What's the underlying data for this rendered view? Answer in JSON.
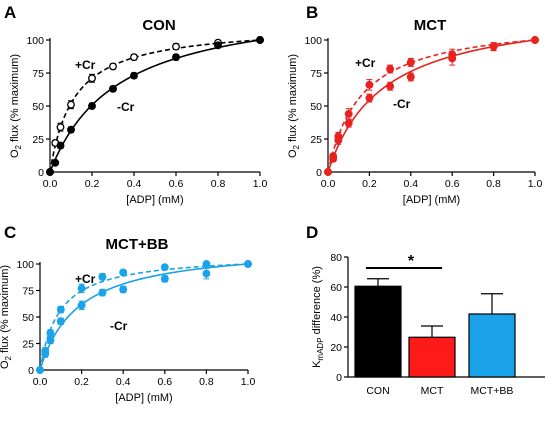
{
  "chart_data": [
    {
      "panel": "A",
      "type": "line",
      "title": "CON",
      "color": "#000000",
      "xlabel": "[ADP] (mM)",
      "ylabel": "O2 flux (% maximum)",
      "xlim": [
        0,
        1.0
      ],
      "ylim": [
        0,
        100
      ],
      "xticks": [
        "0.0",
        "0.2",
        "0.4",
        "0.6",
        "0.8",
        "1.0"
      ],
      "yticks": [
        "0",
        "25",
        "50",
        "75",
        "100"
      ],
      "series": [
        {
          "name": "+Cr",
          "style": "dashed",
          "x": [
            0,
            0.025,
            0.05,
            0.1,
            0.2,
            0.3,
            0.4,
            0.6,
            0.8,
            1.0
          ],
          "y": [
            0,
            22,
            34,
            51,
            71,
            80,
            87,
            95,
            98,
            100
          ],
          "err": [
            0,
            2,
            3,
            3,
            3,
            2,
            2,
            2,
            1,
            0
          ]
        },
        {
          "name": "-Cr",
          "style": "solid",
          "x": [
            0,
            0.025,
            0.05,
            0.1,
            0.2,
            0.3,
            0.4,
            0.6,
            0.8,
            1.0
          ],
          "y": [
            0,
            7,
            20,
            32,
            50,
            63,
            73,
            87,
            96,
            100
          ],
          "err": [
            0,
            1,
            2,
            2,
            2,
            2,
            2,
            2,
            1,
            0
          ]
        }
      ]
    },
    {
      "panel": "B",
      "type": "line",
      "title": "MCT",
      "color": "#e8221e",
      "xlabel": "[ADP] (mM)",
      "ylabel": "O2 flux (% maximum)",
      "xlim": [
        0,
        1.0
      ],
      "ylim": [
        0,
        100
      ],
      "xticks": [
        "0.0",
        "0.2",
        "0.4",
        "0.6",
        "0.8",
        "1.0"
      ],
      "yticks": [
        "0",
        "25",
        "50",
        "75",
        "100"
      ],
      "series": [
        {
          "name": "+Cr",
          "style": "dashed",
          "x": [
            0,
            0.025,
            0.05,
            0.1,
            0.2,
            0.3,
            0.4,
            0.6,
            0.8,
            1.0
          ],
          "y": [
            0,
            12,
            27,
            44,
            66,
            78,
            83,
            89,
            95,
            100
          ],
          "err": [
            0,
            2,
            3,
            4,
            4,
            3,
            3,
            4,
            3,
            0
          ]
        },
        {
          "name": "-Cr",
          "style": "solid",
          "x": [
            0,
            0.025,
            0.05,
            0.1,
            0.2,
            0.3,
            0.4,
            0.6,
            0.8,
            1.0
          ],
          "y": [
            0,
            10,
            24,
            37,
            56,
            65,
            72,
            86,
            95,
            100
          ],
          "err": [
            0,
            2,
            3,
            3,
            3,
            3,
            3,
            5,
            3,
            0
          ]
        }
      ]
    },
    {
      "panel": "C",
      "type": "line",
      "title": "MCT+BB",
      "color": "#1aa3e8",
      "xlabel": "[ADP] (mM)",
      "ylabel": "O2 flux (% maximum)",
      "xlim": [
        0,
        1.0
      ],
      "ylim": [
        0,
        100
      ],
      "xticks": [
        "0.0",
        "0.2",
        "0.4",
        "0.6",
        "0.8",
        "1.0"
      ],
      "yticks": [
        "0",
        "25",
        "50",
        "75",
        "100"
      ],
      "series": [
        {
          "name": "+Cr",
          "style": "dashed",
          "x": [
            0,
            0.025,
            0.05,
            0.1,
            0.2,
            0.3,
            0.4,
            0.6,
            0.8,
            1.0
          ],
          "y": [
            0,
            18,
            35,
            57,
            77,
            88,
            92,
            97,
            100,
            100
          ],
          "err": [
            0,
            3,
            3,
            3,
            4,
            3,
            2,
            2,
            1,
            0
          ]
        },
        {
          "name": "-Cr",
          "style": "solid",
          "x": [
            0,
            0.025,
            0.05,
            0.1,
            0.2,
            0.3,
            0.4,
            0.6,
            0.8,
            1.0
          ],
          "y": [
            0,
            15,
            28,
            46,
            61,
            73,
            76,
            86,
            91,
            100
          ],
          "err": [
            0,
            3,
            3,
            3,
            4,
            3,
            3,
            3,
            5,
            0
          ]
        }
      ]
    },
    {
      "panel": "D",
      "type": "bar",
      "title": "",
      "categories": [
        "CON",
        "MCT",
        "MCT+BB"
      ],
      "values": [
        60.5,
        26.5,
        42
      ],
      "errors": [
        5,
        7.5,
        13.5
      ],
      "colors": [
        "#000000",
        "#ff1a1a",
        "#1aa3e8"
      ],
      "xlabel": "",
      "ylabel_main": "K",
      "ylabel_sub": "mADP",
      "ylabel_rest": " difference (%)",
      "ylim": [
        0,
        80
      ],
      "yticks": [
        "0",
        "20",
        "40",
        "60",
        "80"
      ],
      "significance": {
        "label": "*",
        "between": [
          "CON",
          "MCT"
        ]
      }
    }
  ]
}
